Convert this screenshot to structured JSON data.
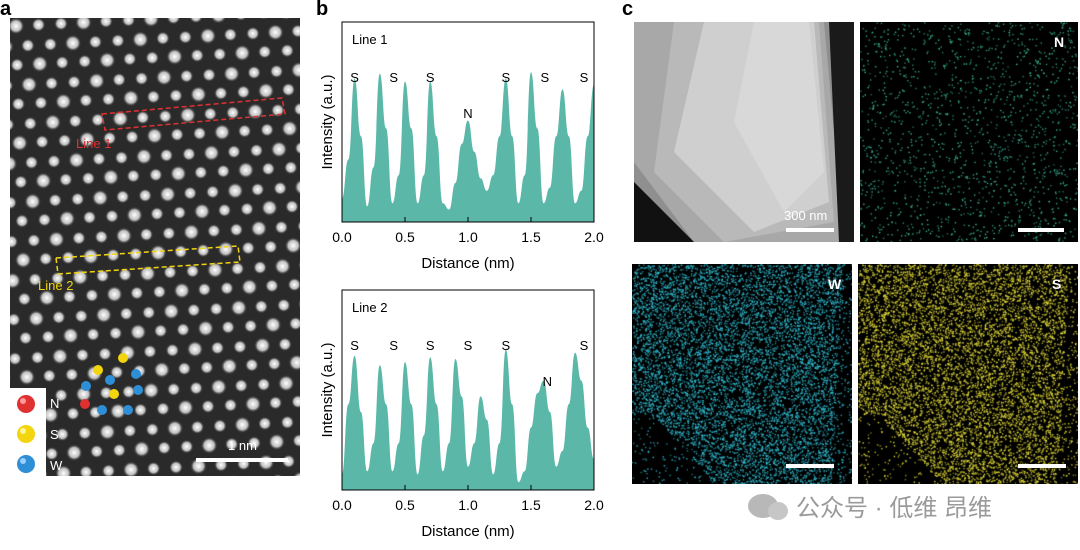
{
  "panels": {
    "a": "a",
    "b": "b",
    "c": "c"
  },
  "stem": {
    "line1_label": "Line 1",
    "line2_label": "Line 2",
    "scale_label": "1 nm",
    "legend": [
      {
        "symbol": "N",
        "color": "#e03131"
      },
      {
        "symbol": "S",
        "color": "#f2d50f"
      },
      {
        "symbol": "W",
        "color": "#2f8fd6"
      }
    ],
    "line1_color": "#e03131",
    "line2_color": "#f2d50f"
  },
  "chart_data": [
    {
      "type": "area",
      "title": "Line 1",
      "xlabel": "Distance (nm)",
      "ylabel": "Intensity (a.u.)",
      "xlim": [
        0.0,
        2.0
      ],
      "x_ticks": [
        "0.0",
        "0.5",
        "1.0",
        "1.5",
        "2.0"
      ],
      "color": "#5bb8a8",
      "x": [
        0.0,
        0.05,
        0.1,
        0.15,
        0.2,
        0.25,
        0.3,
        0.35,
        0.4,
        0.45,
        0.5,
        0.55,
        0.6,
        0.65,
        0.7,
        0.75,
        0.8,
        0.85,
        0.9,
        0.95,
        1.0,
        1.05,
        1.1,
        1.15,
        1.2,
        1.25,
        1.3,
        1.35,
        1.4,
        1.45,
        1.5,
        1.55,
        1.6,
        1.65,
        1.7,
        1.75,
        1.8,
        1.85,
        1.9,
        1.95,
        2.0
      ],
      "y": [
        0.15,
        0.4,
        0.92,
        0.55,
        0.1,
        0.35,
        0.95,
        0.6,
        0.12,
        0.3,
        0.9,
        0.6,
        0.12,
        0.3,
        0.9,
        0.55,
        0.12,
        0.08,
        0.25,
        0.5,
        0.65,
        0.45,
        0.28,
        0.2,
        0.3,
        0.55,
        0.92,
        0.55,
        0.12,
        0.3,
        0.96,
        0.6,
        0.12,
        0.22,
        0.55,
        0.85,
        0.55,
        0.12,
        0.2,
        0.55,
        0.88
      ],
      "annotations": [
        {
          "text": "S",
          "x": 0.1
        },
        {
          "text": "S",
          "x": 0.41
        },
        {
          "text": "S",
          "x": 0.7
        },
        {
          "text": "N",
          "x": 1.0
        },
        {
          "text": "S",
          "x": 1.3
        },
        {
          "text": "S",
          "x": 1.61
        },
        {
          "text": "S",
          "x": 1.92
        }
      ]
    },
    {
      "type": "area",
      "title": "Line 2",
      "xlabel": "Distance (nm)",
      "ylabel": "Intensity (a.u.)",
      "xlim": [
        0.0,
        2.0
      ],
      "x_ticks": [
        "0.0",
        "0.5",
        "1.0",
        "1.5",
        "2.0"
      ],
      "color": "#5bb8a8",
      "x": [
        0.0,
        0.05,
        0.1,
        0.15,
        0.2,
        0.25,
        0.3,
        0.35,
        0.4,
        0.45,
        0.5,
        0.55,
        0.6,
        0.65,
        0.7,
        0.75,
        0.8,
        0.85,
        0.9,
        0.95,
        1.0,
        1.05,
        1.1,
        1.15,
        1.2,
        1.25,
        1.3,
        1.35,
        1.4,
        1.45,
        1.5,
        1.55,
        1.6,
        1.65,
        1.7,
        1.75,
        1.8,
        1.85,
        1.9,
        1.95,
        2.0
      ],
      "y": [
        0.1,
        0.55,
        0.86,
        0.5,
        0.12,
        0.3,
        0.8,
        0.55,
        0.12,
        0.3,
        0.82,
        0.55,
        0.1,
        0.35,
        0.85,
        0.55,
        0.12,
        0.3,
        0.84,
        0.6,
        0.15,
        0.3,
        0.6,
        0.45,
        0.1,
        0.3,
        0.9,
        0.55,
        0.05,
        0.12,
        0.4,
        0.62,
        0.7,
        0.5,
        0.15,
        0.25,
        0.55,
        0.88,
        0.7,
        0.4,
        0.2
      ],
      "annotations": [
        {
          "text": "S",
          "x": 0.1
        },
        {
          "text": "S",
          "x": 0.41
        },
        {
          "text": "S",
          "x": 0.7
        },
        {
          "text": "S",
          "x": 1.0
        },
        {
          "text": "S",
          "x": 1.3
        },
        {
          "text": "N",
          "x": 1.63
        },
        {
          "text": "S",
          "x": 1.92
        }
      ]
    }
  ],
  "eds": {
    "haadf_scale": "300 nm",
    "maps": [
      {
        "label": "N",
        "color": "#3fc6a2"
      },
      {
        "label": "W",
        "color": "#31c3d9"
      },
      {
        "label": "S",
        "color": "#e8e03a"
      }
    ]
  },
  "watermark": {
    "text": "公众号 · 低维 昂维"
  }
}
